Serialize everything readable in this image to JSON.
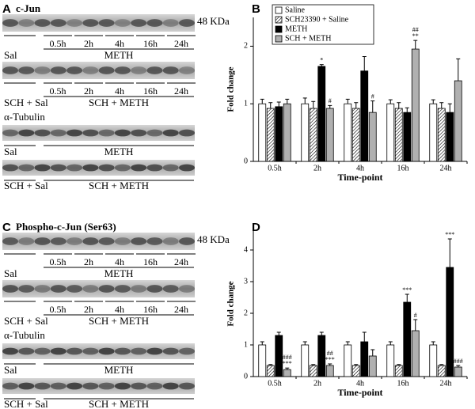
{
  "panels": [
    {
      "label": "A",
      "title": "c-Jun",
      "marker": "48 KDa",
      "groups": [
        {
          "lanes": [
            "0.5h",
            "2h",
            "4h",
            "16h",
            "24h"
          ],
          "left": "Sal",
          "right": "METH"
        },
        {
          "lanes": [
            "0.5h",
            "2h",
            "4h",
            "16h",
            "24h"
          ],
          "left": "SCH + Sal",
          "right": "SCH + METH"
        }
      ],
      "loading": "α-Tubulin",
      "loading_groups": [
        {
          "left": "Sal",
          "right": "METH"
        },
        {
          "left": "SCH + Sal",
          "right": "SCH + METH"
        }
      ]
    },
    {
      "label": "C",
      "title": "Phospho-c-Jun (Ser63)",
      "marker": "48 KDa",
      "groups": [
        {
          "lanes": [
            "0.5h",
            "2h",
            "4h",
            "16h",
            "24h"
          ],
          "left": "Sal",
          "right": "METH"
        },
        {
          "lanes": [
            "0.5h",
            "2h",
            "4h",
            "16h",
            "24h"
          ],
          "left": "SCH + Sal",
          "right": "SCH + METH"
        }
      ],
      "loading": "α-Tubulin",
      "loading_groups": [
        {
          "left": "Sal",
          "right": "METH"
        },
        {
          "left": "SCH + Sal",
          "right": "SCH + METH"
        }
      ]
    }
  ],
  "chart_data": [
    {
      "type": "bar",
      "title": "B",
      "y_label": "Fold change",
      "x_label": "Time-point",
      "categories": [
        "0.5h",
        "2h",
        "4h",
        "16h",
        "24h"
      ],
      "ylim": [
        0,
        2.5
      ],
      "yticks": [
        0,
        1,
        2
      ],
      "legend": "upper left",
      "series": [
        {
          "name": "Saline",
          "color": "#ffffff",
          "values": [
            1.0,
            1.0,
            1.0,
            1.0,
            1.0
          ],
          "errors": [
            0.08,
            0.1,
            0.08,
            0.07,
            0.07
          ]
        },
        {
          "name": "SCH23390 + Saline",
          "color": "#ffffff",
          "hatch": true,
          "values": [
            0.92,
            0.92,
            0.92,
            0.92,
            0.92
          ],
          "errors": [
            0.1,
            0.12,
            0.1,
            0.1,
            0.1
          ]
        },
        {
          "name": "METH",
          "color": "#000000",
          "values": [
            0.95,
            1.65,
            1.57,
            0.85,
            0.85
          ],
          "errors": [
            0.08,
            0.03,
            0.25,
            0.08,
            0.15
          ],
          "annotations": [
            null,
            [
              "*"
            ],
            null,
            null,
            null
          ]
        },
        {
          "name": "SCH + METH",
          "color": "#b0b0b0",
          "values": [
            1.0,
            0.92,
            0.85,
            1.95,
            1.4
          ],
          "errors": [
            0.08,
            0.05,
            0.2,
            0.15,
            0.38
          ],
          "annotations": [
            null,
            [
              "#"
            ],
            [
              "#"
            ],
            [
              "##",
              "**"
            ],
            null
          ]
        }
      ]
    },
    {
      "type": "bar",
      "title": "D",
      "y_label": "Fold change",
      "x_label": "Time-point",
      "categories": [
        "0.5h",
        "2h",
        "4h",
        "16h",
        "24h"
      ],
      "ylim": [
        0,
        4.6
      ],
      "yticks": [
        0,
        1,
        2,
        3,
        4
      ],
      "legend": "none",
      "series": [
        {
          "name": "Saline",
          "color": "#ffffff",
          "values": [
            1.0,
            1.0,
            1.0,
            1.0,
            1.0
          ],
          "errors": [
            0.1,
            0.1,
            0.1,
            0.1,
            0.1
          ]
        },
        {
          "name": "SCH23390 + Saline",
          "color": "#ffffff",
          "hatch": true,
          "values": [
            0.35,
            0.35,
            0.35,
            0.35,
            0.35
          ],
          "errors": [
            0.03,
            0.03,
            0.03,
            0.03,
            0.03
          ]
        },
        {
          "name": "METH",
          "color": "#000000",
          "values": [
            1.3,
            1.3,
            1.1,
            2.35,
            3.45
          ],
          "errors": [
            0.1,
            0.1,
            0.3,
            0.25,
            0.9
          ],
          "annotations": [
            null,
            null,
            null,
            [
              "***"
            ],
            [
              "***"
            ]
          ]
        },
        {
          "name": "SCH + METH",
          "color": "#b0b0b0",
          "values": [
            0.22,
            0.35,
            0.65,
            1.45,
            0.3
          ],
          "errors": [
            0.05,
            0.05,
            0.2,
            0.35,
            0.05
          ],
          "annotations": [
            [
              "###",
              "***"
            ],
            [
              "##",
              "***"
            ],
            null,
            [
              "#"
            ],
            [
              "###"
            ]
          ]
        }
      ]
    }
  ]
}
